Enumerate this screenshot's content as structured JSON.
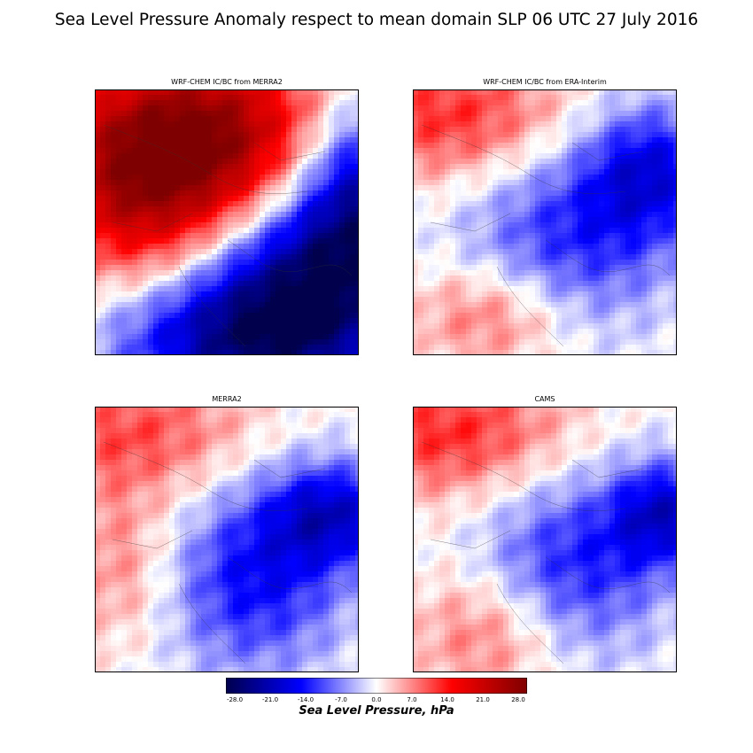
{
  "figure": {
    "title": "Sea Level Pressure Anomaly respect to mean domain SLP 06 UTC 27 July 2016"
  },
  "chart_data": [
    {
      "type": "heatmap",
      "title": "WRF-CHEM IC/BC from MERRA2",
      "pattern": "strong positive anomaly (~+20 to +28 hPa) over north / north-west, strong negative (~-20 to -28 hPa) over east and south-east",
      "blobs": [
        {
          "cx": 0.4,
          "cy": 0.18,
          "rx": 0.55,
          "ry": 0.35,
          "v": 26
        },
        {
          "cx": 0.2,
          "cy": 0.45,
          "rx": 0.4,
          "ry": 0.35,
          "v": 14
        },
        {
          "cx": 0.8,
          "cy": 0.75,
          "rx": 0.45,
          "ry": 0.4,
          "v": -25
        },
        {
          "cx": 1.0,
          "cy": 0.35,
          "rx": 0.25,
          "ry": 0.35,
          "v": -18
        },
        {
          "cx": 0.45,
          "cy": 0.95,
          "rx": 0.45,
          "ry": 0.25,
          "v": -14
        }
      ]
    },
    {
      "type": "heatmap",
      "title": "WRF-CHEM IC/BC from ERA-Interim",
      "pattern": "weak positive anomaly north-west and south-west, moderate negative over Arabian peninsula",
      "blobs": [
        {
          "cx": 0.15,
          "cy": 0.1,
          "rx": 0.45,
          "ry": 0.25,
          "v": 12
        },
        {
          "cx": 0.6,
          "cy": 0.55,
          "rx": 0.4,
          "ry": 0.35,
          "v": -12
        },
        {
          "cx": 0.9,
          "cy": 0.3,
          "rx": 0.25,
          "ry": 0.25,
          "v": -14
        },
        {
          "cx": 0.3,
          "cy": 0.85,
          "rx": 0.3,
          "ry": 0.2,
          "v": 9
        }
      ]
    },
    {
      "type": "heatmap",
      "title": "MERRA2",
      "pattern": "weak positive anomaly north and west, negative over Arabian peninsula and Persian Gulf",
      "blobs": [
        {
          "cx": 0.15,
          "cy": 0.1,
          "rx": 0.45,
          "ry": 0.25,
          "v": 10
        },
        {
          "cx": 0.6,
          "cy": 0.65,
          "rx": 0.35,
          "ry": 0.35,
          "v": -14
        },
        {
          "cx": 0.9,
          "cy": 0.4,
          "rx": 0.25,
          "ry": 0.2,
          "v": -16
        },
        {
          "cx": 0.1,
          "cy": 0.6,
          "rx": 0.25,
          "ry": 0.3,
          "v": 7
        }
      ]
    },
    {
      "type": "heatmap",
      "title": "CAMS",
      "pattern": "positive anomaly north-west and south-west, moderate negative over Arabian peninsula",
      "blobs": [
        {
          "cx": 0.15,
          "cy": 0.1,
          "rx": 0.45,
          "ry": 0.25,
          "v": 12
        },
        {
          "cx": 0.6,
          "cy": 0.6,
          "rx": 0.35,
          "ry": 0.35,
          "v": -13
        },
        {
          "cx": 0.95,
          "cy": 0.4,
          "rx": 0.2,
          "ry": 0.2,
          "v": -16
        },
        {
          "cx": 0.3,
          "cy": 0.85,
          "rx": 0.3,
          "ry": 0.25,
          "v": 9
        }
      ]
    }
  ],
  "colorbar": {
    "colormap": "seismic",
    "range": [
      -28.0,
      28.0
    ],
    "ticks": [
      "-28.0",
      "-21.0",
      "-14.0",
      "-7.0",
      "0.0",
      "7.0",
      "14.0",
      "21.0",
      "28.0"
    ],
    "label": "Sea Level Pressure, hPa",
    "colors": {
      "min": "#00004c",
      "blue": "#0000ff",
      "white": "#ffffff",
      "red": "#ff0000",
      "max": "#7f0000"
    }
  }
}
